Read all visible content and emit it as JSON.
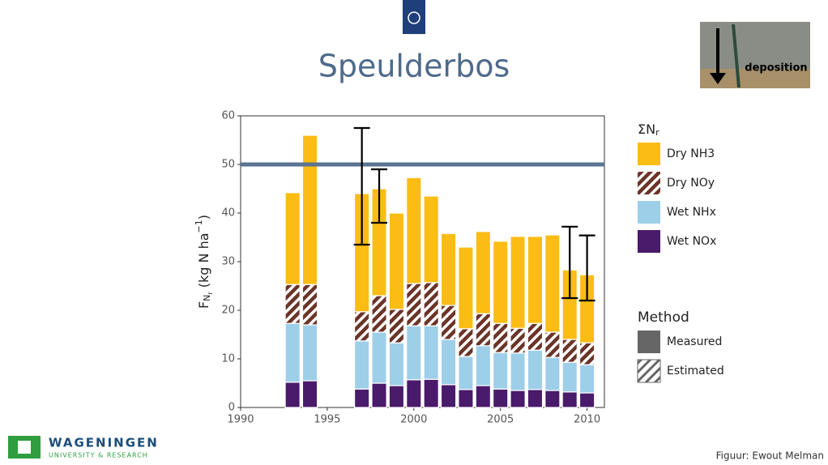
{
  "slide": {
    "title": "Speulderbos",
    "credit": "Figuur: Ewout Melman",
    "logo_main": "WAGENINGEN",
    "logo_sub": "UNIVERSITY & RESEARCH",
    "photo_label": "deposition"
  },
  "chart_data": {
    "type": "stacked_bar",
    "x": [
      1993,
      1994,
      1997,
      1998,
      1999,
      2000,
      2001,
      2002,
      2003,
      2004,
      2005,
      2006,
      2007,
      2008,
      2009,
      2010
    ],
    "series": [
      {
        "name": "Wet NOx",
        "color": "#4a1a6b",
        "hatched": false,
        "values": [
          5.2,
          5.5,
          3.8,
          5.0,
          4.5,
          5.7,
          5.8,
          4.7,
          3.7,
          4.5,
          3.8,
          3.5,
          3.7,
          3.5,
          3.2,
          3.0
        ]
      },
      {
        "name": "Wet NHx",
        "color": "#9ecfe9",
        "hatched": false,
        "values": [
          12.1,
          11.5,
          9.9,
          10.5,
          8.8,
          11.1,
          11.0,
          9.3,
          6.8,
          8.2,
          7.5,
          7.7,
          8.1,
          6.8,
          6.1,
          5.8
        ]
      },
      {
        "name": "Dry NOy",
        "color": "#6b3428",
        "hatched": true,
        "values": [
          8.0,
          8.3,
          6.0,
          7.5,
          6.9,
          8.7,
          8.9,
          7.0,
          5.7,
          6.6,
          6.0,
          5.1,
          5.5,
          5.2,
          4.7,
          4.5
        ]
      },
      {
        "name": "Dry NH3",
        "color": "#fbbc14",
        "hatched": false,
        "values": [
          18.9,
          30.7,
          24.3,
          22.0,
          19.8,
          21.8,
          17.8,
          14.8,
          16.8,
          16.9,
          16.9,
          18.9,
          17.9,
          20.0,
          14.3,
          14.0
        ]
      }
    ],
    "error_bars": [
      {
        "x": 1997,
        "low": 33.5,
        "high": 57.5
      },
      {
        "x": 1998,
        "low": 38,
        "high": 49
      },
      {
        "x": 2009,
        "low": 22.5,
        "high": 37.2
      },
      {
        "x": 2010,
        "low": 22,
        "high": 35.4
      }
    ],
    "reference_line": {
      "value": 50,
      "color": "#5a7493"
    },
    "ylabel": {
      "main": "F",
      "sub": "N",
      "subsub": "r",
      "unit": " (kg N ha",
      "sup": "−1",
      "close": ")"
    },
    "legend_title": {
      "main": "ΣN",
      "sub": "r"
    },
    "method_legend": {
      "title": "Method",
      "items": [
        "Measured",
        "Estimated"
      ]
    },
    "xlim": [
      1990,
      2011
    ],
    "xticks": [
      1990,
      1995,
      2000,
      2005,
      2010
    ],
    "ylim": [
      0,
      60
    ],
    "yticks": [
      0,
      10,
      20,
      30,
      40,
      50,
      60
    ]
  }
}
